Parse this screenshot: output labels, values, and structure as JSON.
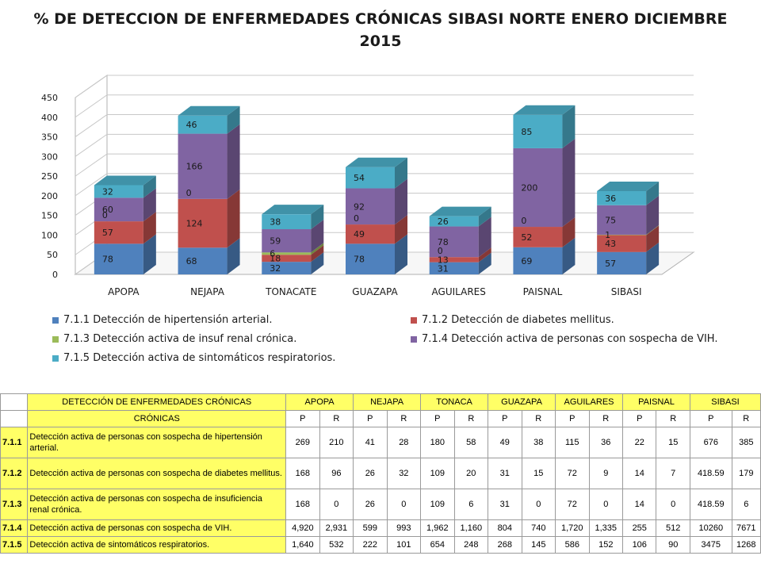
{
  "title": "% DE DETECCION DE ENFERMEDADES CRÓNICAS SIBASI NORTE ENERO DICIEMBRE 2015",
  "chart_data": {
    "type": "bar",
    "stacked": true,
    "three_d": true,
    "title": "% DE DETECCION DE ENFERMEDADES CRÓNICAS SIBASI NORTE ENERO DICIEMBRE 2015",
    "categories": [
      "APOPA",
      "NEJAPA",
      "TONACATE",
      "GUAZAPA",
      "AGUILARES",
      "PAISNAL",
      "SIBASI"
    ],
    "series": [
      {
        "name": "7.1.1 Detección de hipertensión arterial.",
        "color": "#4f81bd",
        "values": [
          78,
          68,
          32,
          78,
          31,
          69,
          57
        ]
      },
      {
        "name": "7.1.2 Detección de diabetes mellitus.",
        "color": "#c0504d",
        "values": [
          57,
          124,
          18,
          49,
          13,
          52,
          43
        ]
      },
      {
        "name": "7.1.3 Detección activa de insuf renal crónica.",
        "color": "#9bbb59",
        "values": [
          0,
          0,
          6,
          0,
          0,
          0,
          1
        ]
      },
      {
        "name": "7.1.4 Detección activa de personas con sospecha de VIH.",
        "color": "#8064a2",
        "values": [
          60,
          166,
          59,
          92,
          78,
          200,
          75
        ]
      },
      {
        "name": "7.1.5 Detección activa de sintomáticos respiratorios.",
        "color": "#4bacc6",
        "values": [
          32,
          46,
          38,
          54,
          26,
          85,
          36
        ]
      }
    ],
    "ylim": [
      0,
      450
    ],
    "yticks": [
      0,
      50,
      100,
      150,
      200,
      250,
      300,
      350,
      400,
      450
    ],
    "grid": true,
    "legend_position": "bottom"
  },
  "table": {
    "header_title": "DETECCIÓN DE ENFERMEDADES CRÓNICAS",
    "subheader": "CRÓNICAS",
    "columns": [
      "APOPA",
      "NEJAPA",
      "TONACA",
      "GUAZAPA",
      "AGUILARES",
      "PAISNAL",
      "SIBASI"
    ],
    "pr": [
      "P",
      "R"
    ],
    "rows": [
      {
        "code": "7.1.1",
        "desc": "Detección activa de personas con sospecha de hipertensión arterial.",
        "values": [
          "269",
          "210",
          "41",
          "28",
          "180",
          "58",
          "49",
          "38",
          "115",
          "36",
          "22",
          "15",
          "676",
          "385"
        ]
      },
      {
        "code": "7.1.2",
        "desc": "Detección activa de personas con sospecha de diabetes mellitus.",
        "values": [
          "168",
          "96",
          "26",
          "32",
          "109",
          "20",
          "31",
          "15",
          "72",
          "9",
          "14",
          "7",
          "418.59",
          "179"
        ]
      },
      {
        "code": "7.1.3",
        "desc": "Detección activa de personas con sospecha de insuficiencia renal crónica.",
        "values": [
          "168",
          "0",
          "26",
          "0",
          "109",
          "6",
          "31",
          "0",
          "72",
          "0",
          "14",
          "0",
          "418.59",
          "6"
        ]
      },
      {
        "code": "7.1.4",
        "desc": "Detección activa de personas con sospecha de VIH.",
        "values": [
          "4,920",
          "2,931",
          "599",
          "993",
          "1,962",
          "1,160",
          "804",
          "740",
          "1,720",
          "1,335",
          "255",
          "512",
          "10260",
          "7671"
        ]
      },
      {
        "code": "7.1.5",
        "desc": "Detección activa de sintomáticos respiratorios.",
        "values": [
          "1,640",
          "532",
          "222",
          "101",
          "654",
          "248",
          "268",
          "145",
          "586",
          "152",
          "106",
          "90",
          "3475",
          "1268"
        ]
      }
    ]
  }
}
